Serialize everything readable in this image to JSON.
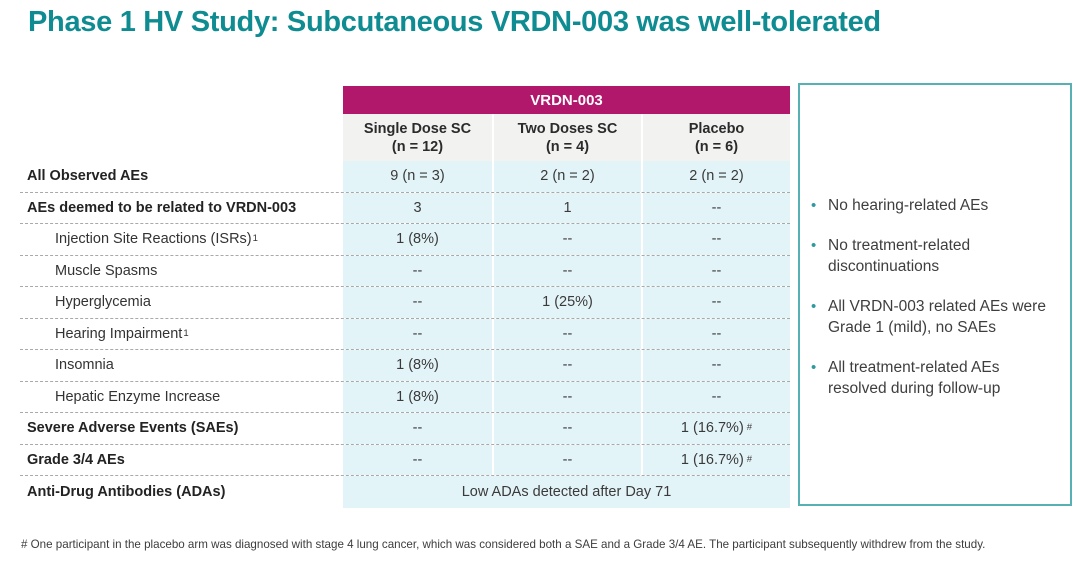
{
  "title": "Phase 1 HV Study: Subcutaneous VRDN-003 was well-tolerated",
  "colors": {
    "title_teal": "#0E8C92",
    "banner_magenta": "#B1186B",
    "cell_blue": "#E3F4F9",
    "header_gray": "#F2F2F1",
    "box_border_teal": "#56B0B4",
    "bullet_teal": "#2E9AA0",
    "text_dark": "#3A3A3A",
    "dash_gray": "#A9A9A9"
  },
  "table": {
    "banner": "VRDN-003",
    "columns": [
      {
        "name": "Single Dose SC",
        "n": "(n = 12)"
      },
      {
        "name": "Two Doses SC",
        "n": "(n = 4)"
      },
      {
        "name": "Placebo",
        "n": "(n = 6)"
      }
    ],
    "rows": [
      {
        "label": "All Observed AEs",
        "values": [
          "9 (n = 3)",
          "2 (n = 2)",
          "2 (n = 2)"
        ]
      },
      {
        "label": "AEs deemed to be related to VRDN-003",
        "values": [
          "3",
          "1",
          "--"
        ]
      },
      {
        "label": "Injection Site Reactions (ISRs)",
        "label_sup": "1",
        "values": [
          "1 (8%)",
          "--",
          "--"
        ]
      },
      {
        "label": "Muscle Spasms",
        "values": [
          "--",
          "--",
          "--"
        ]
      },
      {
        "label": "Hyperglycemia",
        "values": [
          "--",
          "1 (25%)",
          "--"
        ]
      },
      {
        "label": "Hearing Impairment",
        "label_sup": "1",
        "values": [
          "--",
          "--",
          "--"
        ]
      },
      {
        "label": "Insomnia",
        "values": [
          "1 (8%)",
          "--",
          "--"
        ]
      },
      {
        "label": "Hepatic Enzyme Increase",
        "values": [
          "1 (8%)",
          "--",
          "--"
        ]
      },
      {
        "label": "Severe Adverse Events (SAEs)",
        "values": [
          "--",
          "--",
          {
            "text": "1 (16.7%)",
            "sup": "#"
          }
        ]
      },
      {
        "label": "Grade 3/4 AEs",
        "values": [
          "--",
          "--",
          {
            "text": "1 (16.7%)",
            "sup": "#"
          }
        ]
      },
      {
        "label": "Anti-Drug Antibodies (ADAs)",
        "merged_value": "Low ADAs detected after Day 71"
      }
    ]
  },
  "findings": {
    "bullets": [
      "No hearing-related AEs",
      "No treatment-related discontinuations",
      "All VRDN-003 related AEs were Grade 1 (mild), no SAEs",
      "All treatment-related AEs resolved during follow-up"
    ]
  },
  "footnote": "# One participant in the placebo arm was diagnosed with stage 4 lung cancer, which was considered both a SAE and a Grade 3/4 AE. The participant subsequently withdrew from the study."
}
